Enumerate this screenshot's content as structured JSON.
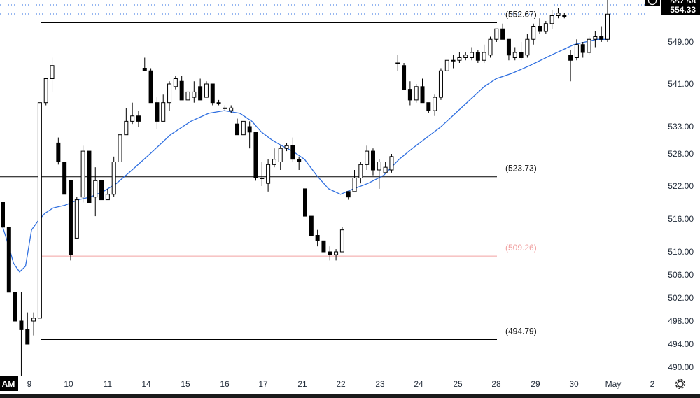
{
  "chart_data": {
    "type": "candlestick",
    "timeframe_note": "intraday candles with moving average",
    "colors": {
      "up_fill": "#ffffff",
      "down_fill": "#000000",
      "wick": "#000000",
      "ma": "#2f6fe0",
      "level_line": "#000000",
      "level_line_highlight": "#f2a0a0",
      "level_label_highlight": "#f0a0a0",
      "price_tag_bg": "#000000",
      "bottom_bar": "#1a1a1a"
    },
    "x_ticks": [
      "AM",
      "9",
      "10",
      "11",
      "14",
      "15",
      "16",
      "17",
      "21",
      "22",
      "23",
      "24",
      "25",
      "28",
      "29",
      "30",
      "May",
      "2"
    ],
    "y_ticks": [
      "490.00",
      "494.00",
      "498.00",
      "502.00",
      "506.00",
      "510.00",
      "516.00",
      "522.00",
      "528.00",
      "533.00",
      "541.00",
      "549.00"
    ],
    "y_tick_values": [
      490,
      494,
      498,
      502,
      506,
      510,
      516,
      522,
      528,
      533,
      541,
      549
    ],
    "last_price_tags": [
      {
        "label": "557.58",
        "value": 557.58
      },
      {
        "label": "554.33",
        "value": 554.33
      }
    ],
    "levels": [
      {
        "label": "(552.67)",
        "value": 552.67,
        "highlight": false
      },
      {
        "label": "(523.73)",
        "value": 523.73,
        "highlight": false
      },
      {
        "label": "(509.26)",
        "value": 509.26,
        "highlight": true
      },
      {
        "label": "(494.79)",
        "value": 494.79,
        "highlight": false
      }
    ],
    "candles": [
      [
        519,
        519,
        514.5,
        514.5
      ],
      [
        514.5,
        514.5,
        503,
        503
      ],
      [
        503,
        503,
        498,
        498
      ],
      [
        498,
        503,
        488.5,
        496.5
      ],
      [
        496.5,
        499.5,
        494,
        494
      ],
      [
        498,
        499.5,
        495.5,
        498.5
      ],
      [
        498.5,
        537.5,
        498.5,
        537.5
      ],
      [
        537.5,
        542,
        537,
        542
      ],
      [
        542,
        546,
        539.5,
        544.5
      ],
      [
        530,
        531,
        526,
        526.5
      ],
      [
        526.5,
        526.5,
        520.5,
        520.5
      ],
      [
        523,
        523,
        508.5,
        509.5
      ],
      [
        512.5,
        520,
        512.5,
        519.5
      ],
      [
        520,
        529.5,
        519,
        528.5
      ],
      [
        528.5,
        528.5,
        519,
        519
      ],
      [
        520,
        525.5,
        516.5,
        523
      ],
      [
        523,
        523,
        519.5,
        519.5
      ],
      [
        519.5,
        521.5,
        519.5,
        520.5
      ],
      [
        520.5,
        527.5,
        520,
        526.5
      ],
      [
        526.5,
        533.5,
        526.5,
        531.5
      ],
      [
        531.5,
        536.5,
        531.5,
        534
      ],
      [
        534,
        537.5,
        533.5,
        535
      ],
      [
        535,
        536,
        533,
        534
      ],
      [
        544,
        546,
        543.5,
        543.5
      ],
      [
        543.5,
        544,
        537.5,
        537.5
      ],
      [
        537.5,
        538.5,
        532.5,
        534
      ],
      [
        534,
        539,
        534,
        537.5
      ],
      [
        537.5,
        541.5,
        536,
        541
      ],
      [
        540.5,
        542.5,
        540,
        542
      ],
      [
        541.5,
        542.5,
        538,
        538
      ],
      [
        538,
        539.5,
        537.5,
        539.5
      ],
      [
        538.5,
        541.5,
        537.5,
        539.5
      ],
      [
        540.5,
        542,
        538,
        538
      ],
      [
        538.5,
        541.5,
        538.5,
        541
      ],
      [
        541,
        541,
        537,
        537.5
      ],
      [
        537.5,
        538,
        537,
        537.5
      ],
      [
        536.5,
        537,
        536,
        536.5
      ],
      [
        536,
        537,
        535.5,
        536.5
      ],
      [
        533.5,
        534.5,
        531.5,
        531.5
      ],
      [
        531.5,
        534,
        531.5,
        534
      ],
      [
        533,
        534,
        529,
        532
      ],
      [
        532,
        532,
        523,
        523.5
      ],
      [
        523.5,
        526.5,
        522,
        523.5
      ],
      [
        522.5,
        527,
        521,
        526
      ],
      [
        526,
        529,
        525.5,
        527
      ],
      [
        526.5,
        529.5,
        525,
        529
      ],
      [
        529,
        530,
        528.5,
        529.5
      ],
      [
        529.5,
        531,
        526.5,
        527
      ],
      [
        527,
        527.5,
        525,
        526.5
      ],
      [
        521.5,
        521.5,
        516.5,
        516.5
      ],
      [
        516.5,
        516.5,
        513,
        513
      ],
      [
        513,
        514,
        511,
        512
      ],
      [
        512,
        512,
        510,
        510
      ],
      [
        510,
        511,
        508.5,
        509.5
      ],
      [
        509.5,
        510.5,
        508.5,
        510
      ],
      [
        510,
        514.5,
        510,
        514
      ],
      [
        521,
        521,
        519.5,
        520
      ],
      [
        521,
        525,
        521,
        523.5
      ],
      [
        523.5,
        526.5,
        522.5,
        526
      ],
      [
        526,
        529.5,
        525,
        528.5
      ],
      [
        528.5,
        529,
        524,
        525
      ],
      [
        525,
        527,
        521.5,
        526.5
      ],
      [
        524.5,
        526.5,
        524.5,
        525.5
      ],
      [
        525,
        528,
        524.5,
        527.5
      ],
      [
        545,
        546.5,
        543.5,
        545
      ],
      [
        544.5,
        545,
        540,
        540
      ],
      [
        540,
        541.5,
        537,
        538
      ],
      [
        538,
        541,
        537.5,
        540.5
      ],
      [
        540.5,
        542,
        537.5,
        537.5
      ],
      [
        537.5,
        537.5,
        535.5,
        536
      ],
      [
        536,
        539,
        535,
        538.5
      ],
      [
        538.5,
        544,
        538,
        543.5
      ],
      [
        543.5,
        545.5,
        543.5,
        545.5
      ],
      [
        545.5,
        546.5,
        544,
        545.5
      ],
      [
        545.5,
        547,
        545,
        546
      ],
      [
        546,
        547,
        545.5,
        546.5
      ],
      [
        546,
        548,
        545.5,
        547
      ],
      [
        547,
        547.5,
        545,
        545.5
      ],
      [
        545.5,
        548.5,
        545,
        547
      ],
      [
        546.5,
        550,
        546,
        549.5
      ],
      [
        549.5,
        551.5,
        549,
        551.5
      ],
      [
        551.5,
        552.5,
        549.5,
        549.5
      ],
      [
        549.5,
        549.5,
        545.5,
        546.5
      ],
      [
        546,
        548,
        545.5,
        547
      ],
      [
        547,
        549,
        545.5,
        546
      ],
      [
        546.5,
        550.5,
        546,
        549.5
      ],
      [
        549.5,
        552.5,
        548.5,
        552
      ],
      [
        552,
        553.5,
        550.5,
        551
      ],
      [
        551,
        553,
        550.5,
        552.5
      ],
      [
        552.5,
        555,
        551.5,
        554
      ],
      [
        554,
        555.5,
        553.5,
        554.5
      ],
      [
        554,
        554.5,
        553.5,
        554
      ],
      [
        546.5,
        547.5,
        541.5,
        545.5
      ],
      [
        546,
        549.5,
        545.5,
        548.5
      ],
      [
        548.5,
        549,
        546,
        547
      ],
      [
        547,
        550,
        546.5,
        549.5
      ],
      [
        549.5,
        551,
        548,
        550
      ],
      [
        550,
        552,
        549,
        549.5
      ],
      [
        549.5,
        557.6,
        549,
        554.3
      ]
    ],
    "ma_points": [
      [
        514.5,
        0
      ],
      [
        511,
        5
      ],
      [
        508,
        9
      ],
      [
        506.5,
        14
      ],
      [
        507.5,
        19
      ],
      [
        514,
        24
      ],
      [
        515.5,
        29
      ],
      [
        517,
        35
      ],
      [
        518,
        42
      ],
      [
        518.5,
        52
      ],
      [
        519.5,
        63
      ],
      [
        520,
        73
      ],
      [
        521,
        84
      ],
      [
        522.5,
        95
      ],
      [
        525,
        108
      ],
      [
        528,
        123
      ],
      [
        531.5,
        140
      ],
      [
        534,
        157
      ],
      [
        535.5,
        172
      ],
      [
        536,
        185
      ],
      [
        535.5,
        198
      ],
      [
        534,
        208
      ],
      [
        532,
        216
      ],
      [
        530.5,
        225
      ],
      [
        529.5,
        233
      ],
      [
        528.5,
        242
      ],
      [
        527,
        252
      ],
      [
        524,
        262
      ],
      [
        521.5,
        272
      ],
      [
        520.5,
        282
      ],
      [
        521.5,
        293
      ],
      [
        522.5,
        305
      ],
      [
        524,
        318
      ],
      [
        527,
        331
      ],
      [
        529,
        342
      ],
      [
        531,
        354
      ],
      [
        533,
        366
      ],
      [
        535.5,
        378
      ],
      [
        538,
        390
      ],
      [
        540.5,
        402
      ],
      [
        542,
        412
      ],
      [
        543,
        425
      ],
      [
        544.5,
        440
      ],
      [
        546.5,
        458
      ],
      [
        548.5,
        477
      ],
      [
        549.5,
        496
      ],
      [
        549.5,
        505
      ]
    ]
  }
}
